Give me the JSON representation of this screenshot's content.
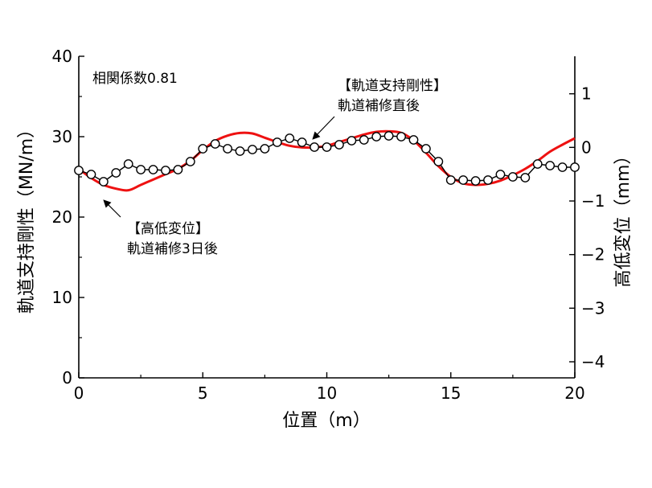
{
  "chart_data": {
    "type": "line",
    "xlabel": "位置（m）",
    "ylabel_left": "軌道支持剛性（MN/m）",
    "ylabel_right": "高低変位（mm）",
    "xlim": [
      0,
      20
    ],
    "ylim_left": [
      0,
      40
    ],
    "ylim_right": [
      -4.3,
      1.7
    ],
    "x_ticks": [
      "0",
      "5",
      "10",
      "15",
      "20"
    ],
    "y_left_ticks": [
      "0",
      "10",
      "20",
      "30",
      "40"
    ],
    "y_right_ticks": [
      "1",
      "0",
      "−1",
      "−2",
      "−3",
      "−4"
    ],
    "y_right_tick_values": [
      1,
      0,
      -1,
      -2,
      -3,
      -4
    ],
    "grid": false,
    "correlation_label": "相関係数0.81",
    "series": [
      {
        "axis": "left",
        "color": "#000000",
        "marker": "open-circle",
        "x": [
          0,
          0.5,
          1,
          1.5,
          2,
          2.5,
          3,
          3.5,
          4,
          4.5,
          5,
          5.5,
          6,
          6.5,
          7,
          7.5,
          8,
          8.5,
          9,
          9.5,
          10,
          10.5,
          11,
          11.5,
          12,
          12.5,
          13,
          13.5,
          14,
          14.5,
          15,
          15.5,
          16,
          16.5,
          17,
          17.5,
          18,
          18.5,
          19,
          19.5,
          20
        ],
        "y": [
          25.8,
          25.3,
          24.4,
          25.5,
          26.6,
          25.9,
          25.9,
          25.8,
          25.9,
          26.9,
          28.5,
          29.1,
          28.5,
          28.2,
          28.4,
          28.5,
          29.3,
          29.8,
          29.3,
          28.7,
          28.7,
          29.0,
          29.5,
          29.6,
          30.0,
          30.1,
          30.0,
          29.6,
          28.5,
          26.9,
          24.6,
          24.6,
          24.5,
          24.6,
          25.3,
          25.0,
          24.9,
          26.6,
          26.4,
          26.2,
          26.2
        ]
      },
      {
        "axis": "right",
        "color": "#ee1111",
        "marker": "none",
        "x": [
          0,
          0.5,
          1,
          1.5,
          2,
          2.5,
          3,
          3.5,
          4,
          4.5,
          5,
          5.5,
          6,
          6.5,
          7,
          7.5,
          8,
          8.5,
          9,
          9.5,
          10,
          10.5,
          11,
          11.5,
          12,
          12.5,
          13,
          13.5,
          14,
          14.5,
          15,
          15.5,
          16,
          16.5,
          17,
          17.5,
          18,
          18.5,
          19,
          19.5,
          20
        ],
        "y": [
          -0.4,
          -0.57,
          -0.7,
          -0.77,
          -0.8,
          -0.7,
          -0.6,
          -0.5,
          -0.4,
          -0.25,
          -0.05,
          0.12,
          0.22,
          0.27,
          0.26,
          0.18,
          0.1,
          0.03,
          0.0,
          0.0,
          0.03,
          0.1,
          0.17,
          0.24,
          0.29,
          0.3,
          0.27,
          0.13,
          -0.1,
          -0.35,
          -0.55,
          -0.67,
          -0.7,
          -0.68,
          -0.62,
          -0.52,
          -0.4,
          -0.25,
          -0.08,
          0.05,
          0.17
        ]
      }
    ],
    "annotations": [
      {
        "lines": [
          "【軌道支持剛性】",
          "軌道補修直後"
        ],
        "target_series": 0
      },
      {
        "lines": [
          "【高低変位】",
          "軌道補修3日後"
        ],
        "target_series": 1
      }
    ]
  }
}
